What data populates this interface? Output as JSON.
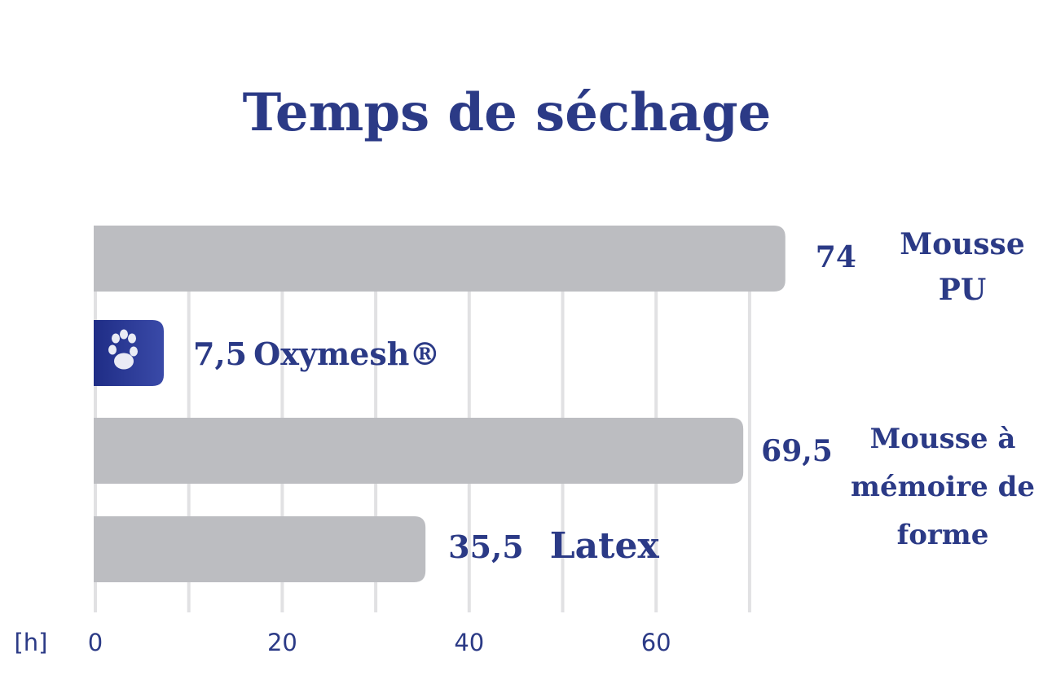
{
  "colors": {
    "text": "#2b3a86",
    "bar": "#bcbdc1",
    "highlight_from": "#1f2d86",
    "highlight_to": "#3a4aa8",
    "grid": "#e1e1e3"
  },
  "icon": "paw-print-icon",
  "chart_data": {
    "type": "bar",
    "orientation": "horizontal",
    "title": "Temps de séchage",
    "unit_label": "[h]",
    "xlim": [
      0,
      75
    ],
    "xticks": [
      "0",
      "20",
      "40",
      "60"
    ],
    "tick_values": [
      0,
      20,
      40,
      60
    ],
    "grid_values": [
      0,
      10,
      20,
      30,
      40,
      50,
      60,
      70
    ],
    "grid": true,
    "categories": [
      {
        "label_lines": [
          "Mousse",
          "PU"
        ],
        "value": 74,
        "value_text": "74",
        "highlight": false
      },
      {
        "label_lines": [
          "Oxymesh®"
        ],
        "value": 7.5,
        "value_text": "7,5",
        "highlight": true
      },
      {
        "label_lines": [
          "Mousse à",
          "mémoire de",
          "forme"
        ],
        "value": 69.5,
        "value_text": "69,5",
        "highlight": false
      },
      {
        "label_lines": [
          "Latex"
        ],
        "value": 35.5,
        "value_text": "35,5",
        "highlight": false
      }
    ]
  }
}
